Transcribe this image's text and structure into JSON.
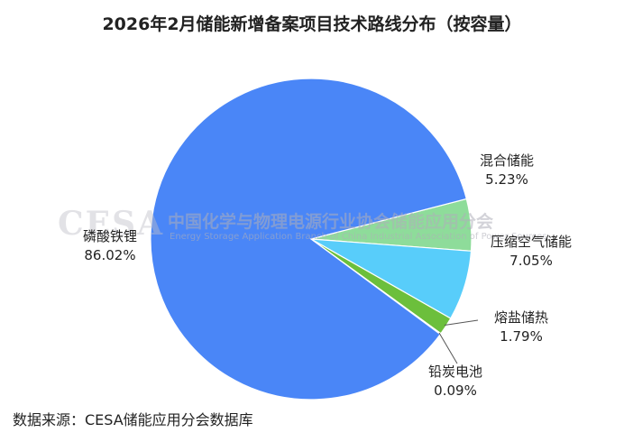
{
  "chart_data": {
    "type": "pie",
    "title": "2026年2月储能新增备案项目技术路线分布（按容量）",
    "categories": [
      "磷酸铁锂",
      "混合储能",
      "压缩空气储能",
      "熔盐储热",
      "铅炭电池"
    ],
    "values": [
      86.02,
      5.23,
      7.05,
      1.79,
      0.09
    ],
    "value_labels": [
      "86.02%",
      "5.23%",
      "7.05%",
      "1.79%",
      "0.09%"
    ],
    "colors": [
      "#4a86f7",
      "#8edc9a",
      "#58cdfa",
      "#6cbf3c",
      "#1f5fa8"
    ],
    "legend": "none"
  },
  "watermark": {
    "logo": "CESA",
    "name_cn": "中国化学与物理电源行业协会储能应用分会",
    "name_en": "Energy Storage Application Branch of China Industrial Association of Power Sources"
  },
  "source": "数据来源：CESA储能应用分会数据库"
}
